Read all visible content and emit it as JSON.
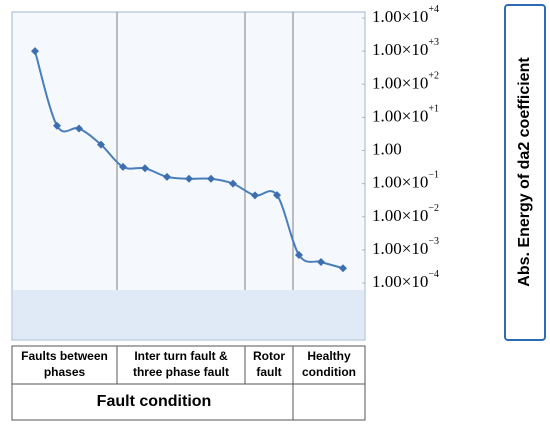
{
  "chart_data": {
    "type": "line",
    "y_label": "Abs. Energy of da2 coefficient",
    "log_y": true,
    "ylim": [
      0.0001,
      10000
    ],
    "yticks": [
      {
        "value": 10000,
        "label": "1.00×10",
        "exponent": "+4"
      },
      {
        "value": 1000,
        "label": "1.00×10",
        "exponent": "+3"
      },
      {
        "value": 100,
        "label": "1.00×10",
        "exponent": "+2"
      },
      {
        "value": 10,
        "label": "1.00×10",
        "exponent": "+1"
      },
      {
        "value": 1,
        "label": "1.00"
      },
      {
        "value": 0.1,
        "label": "1.00×10",
        "exponent": "−1"
      },
      {
        "value": 0.01,
        "label": "1.00×10",
        "exponent": "−2"
      },
      {
        "value": 0.001,
        "label": "1.00×10",
        "exponent": "−3"
      },
      {
        "value": 0.0001,
        "label": "1.00×10",
        "exponent": "−4"
      }
    ],
    "categories": [
      null,
      null,
      null,
      null,
      null,
      null,
      null,
      null,
      null,
      null,
      null,
      null,
      null,
      null,
      null
    ],
    "series": [
      {
        "color": "#4a7ebb",
        "values": [
          1000,
          5.6,
          4.6,
          1.5,
          0.32,
          0.29,
          0.16,
          0.14,
          0.14,
          0.1,
          0.044,
          0.045,
          0.0007,
          0.00043,
          0.00028
        ]
      }
    ],
    "groups": [
      "Faults between phases",
      "Inter turn fault & three phase fault",
      "Rotor fault",
      "Healthy condition"
    ],
    "x_label": "Fault condition"
  }
}
